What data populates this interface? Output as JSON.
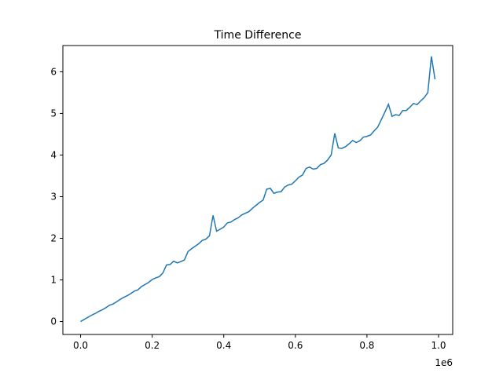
{
  "chart_data": {
    "type": "line",
    "title": "Time Difference",
    "x": [
      0,
      10000,
      20000,
      30000,
      40000,
      50000,
      60000,
      70000,
      80000,
      90000,
      100000,
      110000,
      120000,
      130000,
      140000,
      150000,
      160000,
      170000,
      180000,
      190000,
      200000,
      210000,
      220000,
      230000,
      240000,
      250000,
      260000,
      270000,
      280000,
      290000,
      300000,
      310000,
      320000,
      330000,
      340000,
      350000,
      360000,
      370000,
      380000,
      390000,
      400000,
      410000,
      420000,
      430000,
      440000,
      450000,
      460000,
      470000,
      480000,
      490000,
      500000,
      510000,
      520000,
      530000,
      540000,
      550000,
      560000,
      570000,
      580000,
      590000,
      600000,
      610000,
      620000,
      630000,
      640000,
      650000,
      660000,
      670000,
      680000,
      690000,
      700000,
      710000,
      720000,
      730000,
      740000,
      750000,
      760000,
      770000,
      780000,
      790000,
      800000,
      810000,
      820000,
      830000,
      840000,
      850000,
      860000,
      870000,
      880000,
      890000,
      900000,
      910000,
      920000,
      930000,
      940000,
      950000,
      960000,
      970000,
      980000,
      990000
    ],
    "series": [
      {
        "color": "#1f77b4",
        "values": [
          0,
          0.05,
          0.1,
          0.15,
          0.19,
          0.24,
          0.28,
          0.33,
          0.39,
          0.42,
          0.47,
          0.53,
          0.58,
          0.62,
          0.67,
          0.73,
          0.76,
          0.84,
          0.89,
          0.94,
          1.01,
          1.05,
          1.08,
          1.17,
          1.36,
          1.37,
          1.45,
          1.41,
          1.44,
          1.48,
          1.68,
          1.75,
          1.81,
          1.87,
          1.95,
          1.98,
          2.06,
          2.55,
          2.17,
          2.22,
          2.27,
          2.37,
          2.39,
          2.45,
          2.49,
          2.56,
          2.6,
          2.64,
          2.72,
          2.79,
          2.86,
          2.92,
          3.18,
          3.2,
          3.08,
          3.11,
          3.12,
          3.23,
          3.28,
          3.3,
          3.38,
          3.47,
          3.52,
          3.68,
          3.71,
          3.66,
          3.68,
          3.77,
          3.8,
          3.88,
          4.0,
          4.52,
          4.17,
          4.16,
          4.2,
          4.27,
          4.35,
          4.3,
          4.34,
          4.43,
          4.45,
          4.48,
          4.58,
          4.67,
          4.85,
          5.03,
          5.22,
          4.93,
          4.97,
          4.95,
          5.07,
          5.07,
          5.15,
          5.24,
          5.21,
          5.3,
          5.38,
          5.5,
          6.37,
          5.82
        ]
      }
    ],
    "xlim": [
      -49500,
      1039500
    ],
    "xticks": [
      {
        "value": 0,
        "label": "0.0"
      },
      {
        "value": 200000,
        "label": "0.2"
      },
      {
        "value": 400000,
        "label": "0.4"
      },
      {
        "value": 600000,
        "label": "0.6"
      },
      {
        "value": 800000,
        "label": "0.8"
      },
      {
        "value": 1000000,
        "label": "1.0"
      }
    ],
    "x_offset_label": "1e6",
    "ylim": [
      -0.31,
      6.63
    ],
    "yticks": [
      0,
      1,
      2,
      3,
      4,
      5,
      6
    ]
  }
}
